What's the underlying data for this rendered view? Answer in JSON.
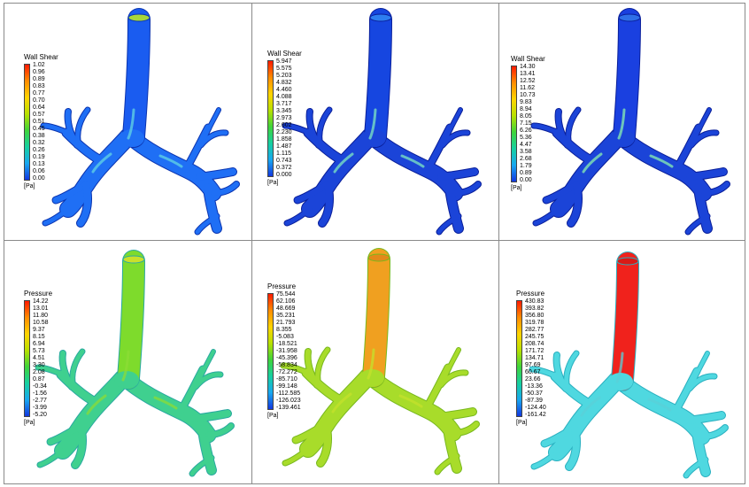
{
  "panels": [
    {
      "id": "wss-1",
      "legend_title": "Wall Shear",
      "unit": "[Pa]",
      "ticks": [
        "1.02",
        "0.96",
        "0.89",
        "0.83",
        "0.77",
        "0.70",
        "0.64",
        "0.57",
        "0.51",
        "0.45",
        "0.38",
        "0.32",
        "0.26",
        "0.19",
        "0.13",
        "0.06",
        "0.00"
      ],
      "colors": {
        "trachea": "#1a5cf0",
        "trachea_top": "#a7d63a",
        "body": "#1f6ff5",
        "accent": "#63d6e3",
        "edge": "#0b34b0"
      }
    },
    {
      "id": "wss-2",
      "legend_title": "Wall Shear",
      "unit": "[Pa]",
      "ticks": [
        "5.947",
        "5.575",
        "5.203",
        "4.832",
        "4.460",
        "4.088",
        "3.717",
        "3.345",
        "2.973",
        "2.602",
        "2.230",
        "1.858",
        "1.487",
        "1.115",
        "0.743",
        "0.372",
        "0.000"
      ],
      "colors": {
        "trachea": "#1646e0",
        "trachea_top": "#2d7ef0",
        "body": "#1b44d8",
        "accent": "#7fe8c2",
        "edge": "#0a1f9a"
      }
    },
    {
      "id": "wss-3",
      "legend_title": "Wall Shear",
      "unit": "[Pa]",
      "ticks": [
        "14.30",
        "13.41",
        "12.52",
        "11.62",
        "10.73",
        "9.83",
        "8.94",
        "8.05",
        "7.15",
        "6.26",
        "5.36",
        "4.47",
        "3.58",
        "2.68",
        "1.79",
        "0.89",
        "0.00"
      ],
      "colors": {
        "trachea": "#1a40e0",
        "trachea_top": "#2f6fe8",
        "body": "#1b44d8",
        "accent": "#8af0b0",
        "edge": "#0a1f9a"
      }
    },
    {
      "id": "pressure-1",
      "legend_title": "Pressure",
      "unit": "[Pa]",
      "ticks": [
        "14.22",
        "13.01",
        "11.80",
        "10.58",
        "9.37",
        "8.15",
        "6.94",
        "5.73",
        "4.51",
        "3.30",
        "2.08",
        "0.87",
        "-0.34",
        "-1.56",
        "-2.77",
        "-3.99",
        "-5.20"
      ],
      "colors": {
        "trachea": "#7edb2c",
        "trachea_top": "#c9e02a",
        "body": "#3fd08f",
        "accent": "#8cdc36",
        "edge": "#2aa9a0"
      }
    },
    {
      "id": "pressure-2",
      "legend_title": "Pressure",
      "unit": "[Pa]",
      "ticks": [
        "75.544",
        "62.106",
        "48.669",
        "35.231",
        "21.793",
        "8.355",
        "-5.083",
        "-18.521",
        "-31.958",
        "-45.396",
        "-58.834",
        "-72.272",
        "-85.710",
        "-99.148",
        "-112.585",
        "-126.023",
        "-139.461"
      ],
      "colors": {
        "trachea": "#f0a020",
        "trachea_top": "#e28a1a",
        "body": "#a8dc2a",
        "accent": "#c4e22c",
        "edge": "#78b81e"
      }
    },
    {
      "id": "pressure-3",
      "legend_title": "Pressure",
      "unit": "[Pa]",
      "ticks": [
        "430.83",
        "393.82",
        "356.80",
        "319.78",
        "282.77",
        "245.75",
        "208.74",
        "171.72",
        "134.71",
        "97.69",
        "60.67",
        "23.66",
        "-13.36",
        "-50.37",
        "-87.39",
        "-124.40",
        "-161.42"
      ],
      "colors": {
        "trachea": "#f0221c",
        "trachea_top": "#d91a16",
        "body": "#4fd8e0",
        "accent": "#5ad0d8",
        "edge": "#2ab0c0"
      }
    }
  ],
  "legend_gradient": [
    "#ff1a00",
    "#ff8c00",
    "#ffd400",
    "#b8e000",
    "#3fd43a",
    "#16d0a0",
    "#18a8f0",
    "#1238e0"
  ]
}
